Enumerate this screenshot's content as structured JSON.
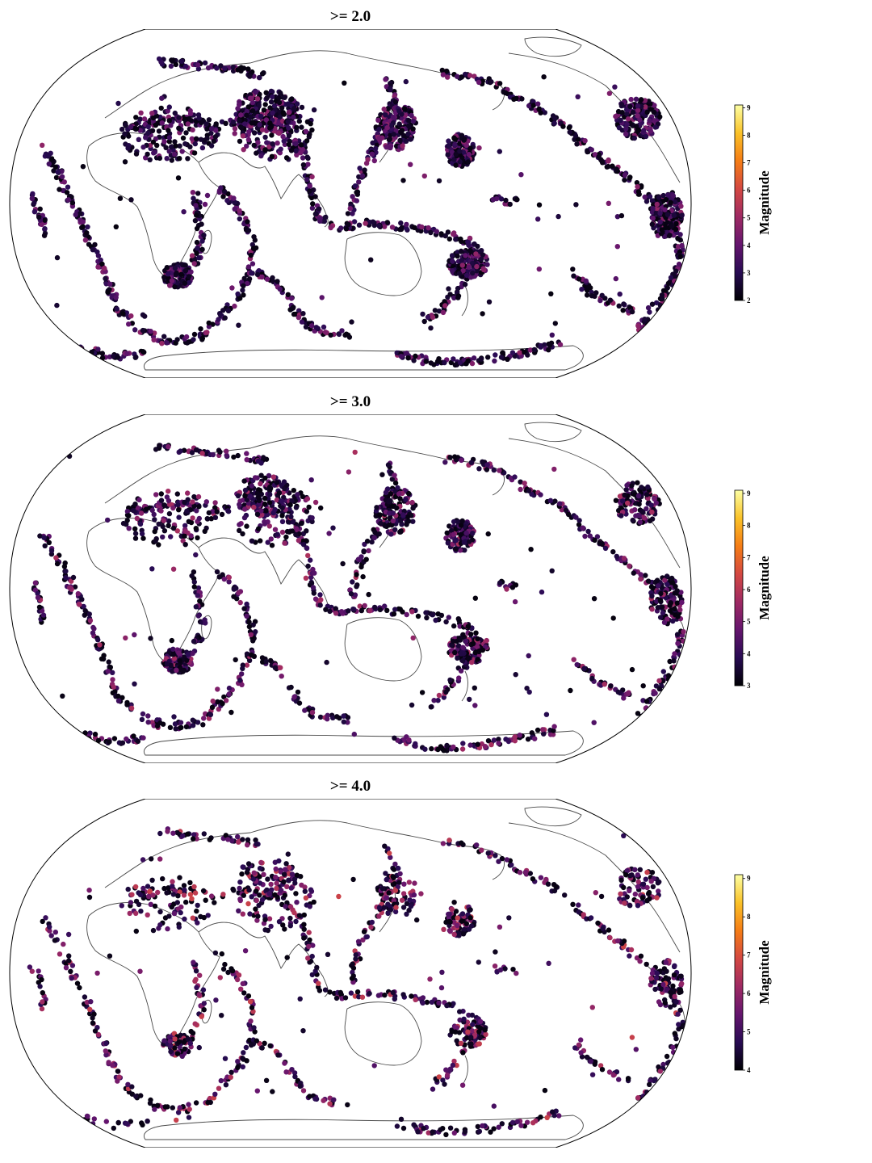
{
  "panels": [
    {
      "title": ">= 2.0",
      "min": 2,
      "max": 9.1,
      "colorbar_label": "Magnitude",
      "ticks": [
        "2",
        "3",
        "4",
        "5",
        "6",
        "7",
        "8",
        "9"
      ]
    },
    {
      "title": ">= 3.0",
      "min": 3,
      "max": 9.1,
      "colorbar_label": "Magnitude",
      "ticks": [
        "3",
        "4",
        "5",
        "6",
        "7",
        "8",
        "9"
      ]
    },
    {
      "title": ">= 4.0",
      "min": 4,
      "max": 9.1,
      "colorbar_label": "Magnitude",
      "ticks": [
        "4",
        "5",
        "6",
        "7",
        "8",
        "9"
      ]
    }
  ],
  "colormap": [
    "#000004",
    "#280b53",
    "#65156e",
    "#9f2a63",
    "#d44842",
    "#f57d15",
    "#fac228",
    "#fcffa4"
  ],
  "map_style": {
    "projection": "Robinson",
    "coastline_color": "#4a4a4a",
    "background": "#ffffff"
  }
}
